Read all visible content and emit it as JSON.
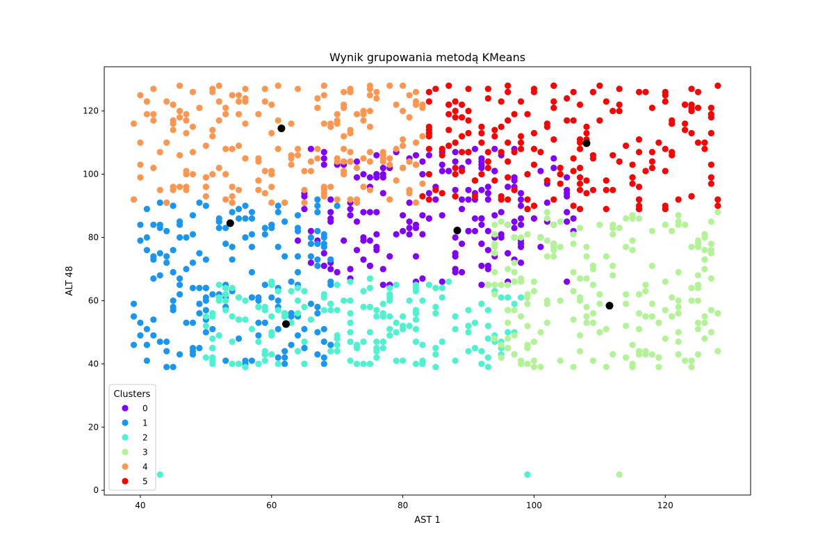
{
  "chart_data": {
    "type": "scatter",
    "title": "Wynik grupowania metodą KMeans",
    "xlabel": "AST 1",
    "ylabel": "ALT 48",
    "xlim": [
      34.5,
      133
    ],
    "ylim": [
      -1.5,
      134
    ],
    "xticks": [
      40,
      60,
      80,
      100,
      120
    ],
    "yticks": [
      0,
      20,
      40,
      60,
      80,
      100,
      120
    ],
    "grid": false,
    "legend": {
      "title": "Clusters",
      "position": "lower-left"
    },
    "series": [
      {
        "name": "0",
        "color": "#8000ff",
        "region": {
          "x": [
            64,
            106
          ],
          "y": [
            65,
            108
          ]
        },
        "count": 200,
        "points": [
          [
            69,
            92
          ],
          [
            72,
            91
          ],
          [
            74,
            88
          ],
          [
            76,
            100
          ],
          [
            80,
            102
          ],
          [
            81,
            91
          ],
          [
            83,
            104
          ],
          [
            85,
            96
          ],
          [
            86,
            107
          ],
          [
            88,
            104
          ],
          [
            90,
            92
          ],
          [
            91,
            86
          ],
          [
            92,
            95
          ],
          [
            94,
            87
          ],
          [
            96,
            84
          ],
          [
            97,
            96
          ],
          [
            98,
            92
          ],
          [
            99,
            89
          ],
          [
            100,
            86
          ],
          [
            101,
            80
          ],
          [
            105,
            88
          ],
          [
            78,
            74
          ],
          [
            75,
            79
          ],
          [
            88,
            70
          ],
          [
            93,
            65
          ],
          [
            86,
            66
          ]
        ]
      },
      {
        "name": "1",
        "color": "#1996f3",
        "region": {
          "x": [
            39,
            70
          ],
          "y": [
            39,
            92
          ]
        },
        "count": 190,
        "points": [
          [
            39,
            92
          ],
          [
            41,
            89
          ],
          [
            43,
            91
          ],
          [
            45,
            90
          ],
          [
            42,
            84
          ],
          [
            46,
            84
          ],
          [
            40,
            79
          ],
          [
            44,
            72
          ],
          [
            49,
            75
          ],
          [
            53,
            83
          ],
          [
            55,
            86
          ],
          [
            57,
            88
          ],
          [
            62,
            85
          ],
          [
            64,
            87
          ],
          [
            66,
            80
          ],
          [
            68,
            78
          ],
          [
            67,
            73
          ],
          [
            63,
            66
          ],
          [
            40,
            49
          ],
          [
            43,
            47
          ],
          [
            45,
            39
          ],
          [
            48,
            45
          ],
          [
            50,
            50
          ],
          [
            55,
            54
          ],
          [
            58,
            58
          ],
          [
            61,
            60
          ]
        ]
      },
      {
        "name": "2",
        "color": "#4df3ce",
        "region": {
          "x": [
            50,
            98
          ],
          "y": [
            39,
            67
          ]
        },
        "count": 190,
        "points": [
          [
            43,
            5
          ],
          [
            99,
            5
          ],
          [
            50,
            42
          ],
          [
            56,
            39
          ],
          [
            60,
            50
          ],
          [
            62,
            56
          ],
          [
            65,
            58
          ],
          [
            68,
            62
          ],
          [
            72,
            66
          ],
          [
            75,
            67
          ],
          [
            78,
            60
          ],
          [
            82,
            63
          ],
          [
            85,
            64
          ],
          [
            88,
            55
          ],
          [
            90,
            52
          ],
          [
            93,
            52
          ],
          [
            96,
            45
          ],
          [
            97,
            43
          ],
          [
            70,
            48
          ],
          [
            75,
            40
          ],
          [
            80,
            41
          ],
          [
            65,
            40
          ],
          [
            85,
            45
          ],
          [
            92,
            40
          ],
          [
            60,
            43
          ]
        ]
      },
      {
        "name": "3",
        "color": "#b2f396",
        "region": {
          "x": [
            93,
            128
          ],
          "y": [
            39,
            88
          ]
        },
        "count": 200,
        "points": [
          [
            113,
            5
          ],
          [
            95,
            65
          ],
          [
            98,
            80
          ],
          [
            102,
            74
          ],
          [
            106,
            78
          ],
          [
            110,
            84
          ],
          [
            112,
            84
          ],
          [
            116,
            86
          ],
          [
            118,
            82
          ],
          [
            122,
            84
          ],
          [
            126,
            80
          ],
          [
            128,
            88
          ],
          [
            100,
            39
          ],
          [
            106,
            39
          ],
          [
            111,
            39
          ],
          [
            119,
            39
          ],
          [
            124,
            41
          ],
          [
            128,
            44
          ],
          [
            104,
            60
          ],
          [
            114,
            52
          ],
          [
            120,
            66
          ],
          [
            108,
            55
          ],
          [
            116,
            62
          ],
          [
            126,
            70
          ]
        ]
      },
      {
        "name": "4",
        "color": "#ff964f",
        "region": {
          "x": [
            39,
            83
          ],
          "y": [
            91,
            128
          ]
        },
        "count": 200,
        "points": [
          [
            39,
            116
          ],
          [
            40,
            125
          ],
          [
            42,
            127
          ],
          [
            45,
            122
          ],
          [
            48,
            126
          ],
          [
            52,
            128
          ],
          [
            56,
            127
          ],
          [
            61,
            128
          ],
          [
            64,
            127
          ],
          [
            68,
            128
          ],
          [
            72,
            127
          ],
          [
            76,
            126
          ],
          [
            78,
            128
          ],
          [
            80,
            128
          ],
          [
            82,
            126
          ],
          [
            83,
            122
          ],
          [
            40,
            99
          ],
          [
            43,
            95
          ],
          [
            47,
            100
          ],
          [
            50,
            96
          ],
          [
            54,
            93
          ],
          [
            58,
            98
          ],
          [
            62,
            91
          ],
          [
            65,
            95
          ],
          [
            69,
            96
          ],
          [
            71,
            101
          ],
          [
            75,
            104
          ],
          [
            80,
            109
          ],
          [
            82,
            110
          ]
        ]
      },
      {
        "name": "5",
        "color": "#ff0000",
        "region": {
          "x": [
            83,
            128
          ],
          "y": [
            88,
            128
          ]
        },
        "count": 200,
        "points": [
          [
            84,
            126
          ],
          [
            87,
            128
          ],
          [
            90,
            127
          ],
          [
            93,
            127
          ],
          [
            96,
            128
          ],
          [
            100,
            127
          ],
          [
            103,
            128
          ],
          [
            106,
            126
          ],
          [
            110,
            128
          ],
          [
            113,
            127
          ],
          [
            117,
            126
          ],
          [
            120,
            125
          ],
          [
            124,
            127
          ],
          [
            128,
            128
          ],
          [
            84,
            114
          ],
          [
            89,
            107
          ],
          [
            92,
            113
          ],
          [
            96,
            110
          ],
          [
            100,
            103
          ],
          [
            104,
            100
          ],
          [
            108,
            98
          ],
          [
            112,
            95
          ],
          [
            116,
            92
          ],
          [
            120,
            89
          ],
          [
            124,
            93
          ],
          [
            128,
            90
          ],
          [
            126,
            110
          ],
          [
            127,
            103
          ]
        ]
      }
    ],
    "centroids": {
      "color": "#000000",
      "points": [
        [
          88.3,
          82.2
        ],
        [
          53.7,
          84.5
        ],
        [
          62.2,
          52.6
        ],
        [
          111.5,
          58.4
        ],
        [
          61.5,
          114.5
        ],
        [
          108.0,
          109.8
        ]
      ]
    }
  }
}
